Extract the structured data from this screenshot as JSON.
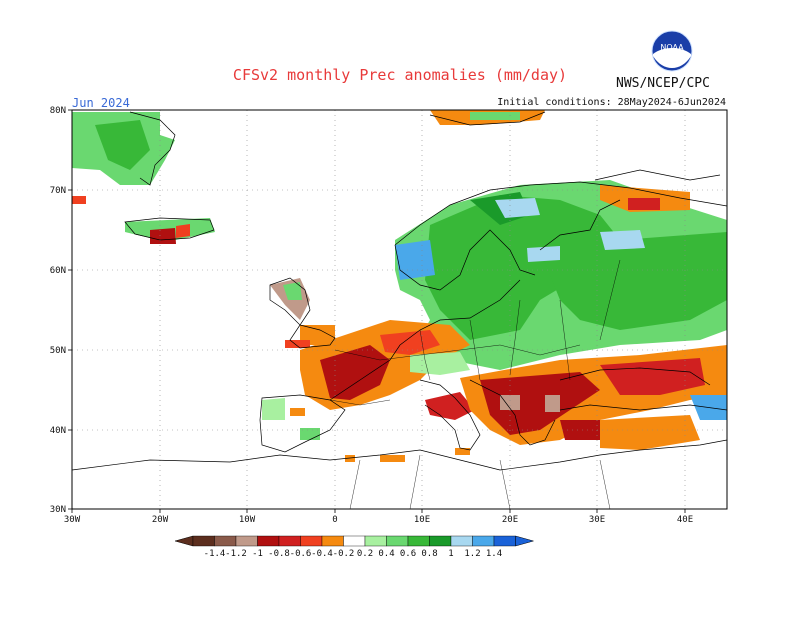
{
  "header": {
    "title": "CFSv2 monthly Prec anomalies (mm/day)",
    "agency": "NWS/NCEP/CPC",
    "logo_text": "NOAA",
    "month": "Jun 2024",
    "initial_conditions": "Initial conditions: 28May2024-6Jun2024"
  },
  "map": {
    "lat_ticks": [
      "80N",
      "70N",
      "60N",
      "50N",
      "40N",
      "30N"
    ],
    "lon_ticks": [
      "30W",
      "20W",
      "10W",
      "0",
      "10E",
      "20E",
      "30E",
      "40E"
    ],
    "grid": "dotted",
    "ocean_color": "#ffffff",
    "coast_color": "#000000"
  },
  "colorbar": {
    "labels": [
      "-1.4",
      "-1.2",
      "-1",
      "-0.8",
      "-0.6",
      "-0.4",
      "-0.2",
      "0.2",
      "0.4",
      "0.6",
      "0.8",
      "1",
      "1.2",
      "1.4"
    ],
    "colors": [
      "#5c2e1e",
      "#8a5a4a",
      "#c09a8a",
      "#b01010",
      "#d02020",
      "#f04020",
      "#f58a10",
      "#ffffff",
      "#a8f0a0",
      "#6ad870",
      "#38b838",
      "#1a9a2a",
      "#a8d8f0",
      "#4aa8ea",
      "#1a62d8"
    ],
    "ends": {
      "low": "#5c2e1e",
      "high": "#1a62d8"
    }
  }
}
